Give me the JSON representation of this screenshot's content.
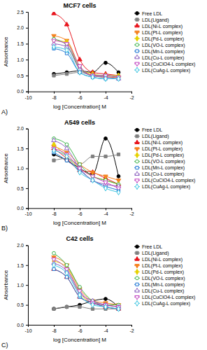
{
  "chart_data": [
    {
      "type": "line",
      "title": "MCF7 cells",
      "annotations": [
        "A)"
      ],
      "x_label": "log [Concentration] M",
      "y_label": "Absorbance",
      "x": [
        -8,
        -7,
        -6,
        -5,
        -4,
        -3
      ],
      "xlim": [
        -10,
        -2
      ],
      "xticks": [
        -10,
        -8,
        -6,
        -4,
        -2
      ],
      "ylim": [
        0,
        2.5
      ],
      "yticks": [
        {
          "value": 0,
          "label": "0.0"
        },
        {
          "value": 0.5,
          "label": "0.5"
        },
        {
          "value": 1,
          "label": "1.0"
        },
        {
          "value": 1.5,
          "label": "1.5"
        },
        {
          "value": 2,
          "label": "2.0"
        },
        {
          "value": 2.5,
          "label": "2.5"
        }
      ],
      "grid": false,
      "legend": "right",
      "series": [
        {
          "name": "Free LDL",
          "color": "#000000",
          "marker": "circle",
          "values": [
            0.55,
            0.6,
            0.65,
            0.6,
            0.9,
            0.6
          ]
        },
        {
          "name": "LDL(Ligand)",
          "color": "#808080",
          "marker": "square",
          "values": [
            0.5,
            0.55,
            0.6,
            0.5,
            0.45,
            0.45
          ]
        },
        {
          "name": "LDL(Ni-L complex)",
          "color": "#e8141c",
          "marker": "triangle",
          "values": [
            2.45,
            2.1,
            1.0,
            0.6,
            0.55,
            0.5
          ]
        },
        {
          "name": "LDL(Pt-L complex)",
          "color": "#f58220",
          "marker": "triangle-down",
          "values": [
            1.75,
            1.6,
            0.8,
            0.5,
            0.45,
            0.45
          ]
        },
        {
          "name": "LDL(Pd-L complex)",
          "color": "#e6d200",
          "marker": "diamond",
          "values": [
            1.6,
            1.55,
            0.7,
            0.55,
            0.5,
            0.5
          ]
        },
        {
          "name": "LDL(VO-L complex)",
          "color": "#3cb44b",
          "marker": "circle-open",
          "values": [
            1.65,
            1.45,
            0.75,
            0.5,
            0.5,
            0.45
          ]
        },
        {
          "name": "LDL(Mn-L complex)",
          "color": "#1f77d4",
          "marker": "square-open",
          "values": [
            1.35,
            1.2,
            0.6,
            0.45,
            0.4,
            0.4
          ]
        },
        {
          "name": "LDL(Cu-L complex)",
          "color": "#8b5fbf",
          "marker": "triangle-open",
          "values": [
            1.5,
            1.4,
            0.7,
            0.5,
            0.45,
            0.4
          ]
        },
        {
          "name": "LDL(CuClO4-L complex)",
          "color": "#c040c0",
          "marker": "triangle-down-open",
          "values": [
            1.6,
            1.5,
            0.8,
            0.5,
            0.5,
            0.45
          ]
        },
        {
          "name": "LDL(CuAg-L complex)",
          "color": "#36c3e0",
          "marker": "diamond-open",
          "values": [
            1.4,
            1.3,
            0.6,
            0.45,
            0.4,
            0.4
          ]
        }
      ]
    },
    {
      "type": "line",
      "title": "A549 cells",
      "annotations": [
        "B)"
      ],
      "x_label": "log [Concentration] M",
      "y_label": "Absorbance",
      "x": [
        -8,
        -7,
        -6,
        -5,
        -4,
        -3
      ],
      "xlim": [
        -10,
        -2
      ],
      "xticks": [
        -10,
        -8,
        -6,
        -4,
        -2
      ],
      "ylim": [
        0,
        2
      ],
      "yticks": [
        {
          "value": 0,
          "label": "0.0"
        },
        {
          "value": 0.5,
          "label": "0.5"
        },
        {
          "value": 1,
          "label": "1.0"
        },
        {
          "value": 1.5,
          "label": "1.5"
        },
        {
          "value": 2,
          "label": "2.0"
        }
      ],
      "grid": false,
      "legend": "right",
      "series": [
        {
          "name": "Free LDL",
          "color": "#000000",
          "marker": "circle",
          "values": [
            1.35,
            1.2,
            1.0,
            0.85,
            1.75,
            0.8
          ]
        },
        {
          "name": "LDL(Ligand)",
          "color": "#808080",
          "marker": "square",
          "values": [
            1.2,
            1.25,
            1.1,
            1.3,
            1.3,
            1.35
          ]
        },
        {
          "name": "LDL(Ni-L complex)",
          "color": "#e8141c",
          "marker": "triangle",
          "values": [
            1.5,
            1.25,
            0.95,
            0.9,
            0.75,
            0.6
          ]
        },
        {
          "name": "LDL(Pt-L complex)",
          "color": "#f58220",
          "marker": "triangle-down",
          "values": [
            1.55,
            1.4,
            1.1,
            0.9,
            0.8,
            0.7
          ]
        },
        {
          "name": "LDL(Pd-L complex)",
          "color": "#e6d200",
          "marker": "diamond",
          "values": [
            1.6,
            1.3,
            1.0,
            0.8,
            0.7,
            0.6
          ]
        },
        {
          "name": "LDL(VO-L complex)",
          "color": "#3cb44b",
          "marker": "circle-open",
          "values": [
            1.75,
            1.6,
            1.1,
            0.8,
            0.7,
            0.6
          ]
        },
        {
          "name": "LDL(Mn-L complex)",
          "color": "#1f77d4",
          "marker": "square-open",
          "values": [
            1.4,
            1.2,
            0.95,
            0.7,
            0.55,
            0.45
          ]
        },
        {
          "name": "LDL(Cu-L complex)",
          "color": "#8b5fbf",
          "marker": "triangle-open",
          "values": [
            1.7,
            1.5,
            1.0,
            0.7,
            0.6,
            0.55
          ]
        },
        {
          "name": "LDL(CuClO4-L complex)",
          "color": "#c040c0",
          "marker": "triangle-down-open",
          "values": [
            1.5,
            1.35,
            1.0,
            0.8,
            0.65,
            0.5
          ]
        },
        {
          "name": "LDL(CuAg-L complex)",
          "color": "#36c3e0",
          "marker": "diamond-open",
          "values": [
            1.45,
            1.3,
            0.9,
            0.7,
            0.5,
            0.4
          ]
        }
      ]
    },
    {
      "type": "line",
      "title": "C42 cells",
      "annotations": [
        "C)"
      ],
      "x_label": "log [Concentration] M",
      "y_label": "Absorbance",
      "x": [
        -8,
        -7,
        -6,
        -5,
        -4,
        -3
      ],
      "xlim": [
        -10,
        -2
      ],
      "xticks": [
        -10,
        -8,
        -6,
        -4,
        -2
      ],
      "ylim": [
        0,
        2
      ],
      "yticks": [
        {
          "value": 0,
          "label": "0.0"
        },
        {
          "value": 0.5,
          "label": "0.5"
        },
        {
          "value": 1,
          "label": "1.0"
        },
        {
          "value": 1.5,
          "label": "1.5"
        },
        {
          "value": 2,
          "label": "2.0"
        }
      ],
      "grid": false,
      "legend": "right",
      "series": [
        {
          "name": "Free LDL",
          "color": "#000000",
          "marker": "circle",
          "values": [
            0.4,
            0.45,
            0.5,
            0.6,
            0.65,
            0.45
          ]
        },
        {
          "name": "LDL(Ligand)",
          "color": "#808080",
          "marker": "square",
          "values": [
            0.4,
            0.45,
            0.45,
            0.4,
            0.4,
            0.4
          ]
        },
        {
          "name": "LDL(Ni-L complex)",
          "color": "#e8141c",
          "marker": "triangle",
          "values": [
            1.4,
            1.2,
            0.7,
            0.55,
            0.45,
            0.4
          ]
        },
        {
          "name": "LDL(Pt-L complex)",
          "color": "#f58220",
          "marker": "triangle-down",
          "values": [
            1.7,
            1.5,
            0.9,
            0.6,
            0.55,
            0.5
          ]
        },
        {
          "name": "LDL(Pd-L complex)",
          "color": "#e6d200",
          "marker": "diamond",
          "values": [
            1.6,
            1.45,
            0.8,
            0.55,
            0.5,
            0.45
          ]
        },
        {
          "name": "LDL(VO-L complex)",
          "color": "#3cb44b",
          "marker": "circle-open",
          "values": [
            1.8,
            1.5,
            0.95,
            0.6,
            0.5,
            0.5
          ]
        },
        {
          "name": "LDL(Mn-L complex)",
          "color": "#1f77d4",
          "marker": "square-open",
          "values": [
            1.4,
            1.2,
            0.7,
            0.55,
            0.45,
            0.4
          ]
        },
        {
          "name": "LDL(Cu-L complex)",
          "color": "#8b5fbf",
          "marker": "triangle-open",
          "values": [
            1.55,
            1.35,
            0.8,
            0.6,
            0.5,
            0.45
          ]
        },
        {
          "name": "LDL(CuClO4-L complex)",
          "color": "#c040c0",
          "marker": "triangle-down-open",
          "values": [
            1.65,
            1.4,
            0.85,
            0.55,
            0.5,
            0.45
          ]
        },
        {
          "name": "LDL(CuAg-L complex)",
          "color": "#36c3e0",
          "marker": "diamond-open",
          "values": [
            1.5,
            1.3,
            0.75,
            0.5,
            0.45,
            0.4
          ]
        }
      ]
    }
  ]
}
